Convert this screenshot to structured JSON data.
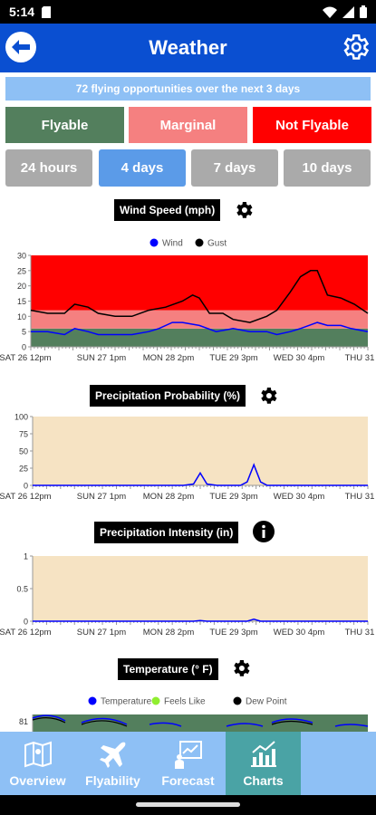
{
  "status": {
    "time": "5:14"
  },
  "appbar": {
    "title": "Weather"
  },
  "banner": "72 flying opportunities over the next 3 days",
  "legend": [
    {
      "label": "Flyable",
      "color": "#537f5d"
    },
    {
      "label": "Marginal",
      "color": "#f58080"
    },
    {
      "label": "Not Flyable",
      "color": "#ff0000"
    }
  ],
  "ranges": [
    {
      "label": "24 hours",
      "active": false
    },
    {
      "label": "4 days",
      "active": true
    },
    {
      "label": "7 days",
      "active": false
    },
    {
      "label": "10 days",
      "active": false
    }
  ],
  "chart_data": [
    {
      "type": "line",
      "title": "Wind Speed (mph)",
      "ylim": [
        0,
        30
      ],
      "yticks": [
        0,
        5,
        10,
        15,
        20,
        25,
        30
      ],
      "xticks": [
        "SAT 26 12pm",
        "SUN 27 1pm",
        "MON 28 2pm",
        "TUE 29 3pm",
        "WED 30 4pm",
        "THU 31"
      ],
      "bands": [
        {
          "from": 0,
          "to": 6,
          "color": "#537f5d"
        },
        {
          "from": 6,
          "to": 12,
          "color": "#f58080"
        },
        {
          "from": 12,
          "to": 30,
          "color": "#ff0000"
        }
      ],
      "legend_position": "top",
      "series": [
        {
          "name": "Wind",
          "color": "#0000ff",
          "x": [
            0,
            0.05,
            0.1,
            0.13,
            0.17,
            0.2,
            0.25,
            0.3,
            0.35,
            0.38,
            0.42,
            0.45,
            0.5,
            0.55,
            0.6,
            0.65,
            0.7,
            0.73,
            0.77,
            0.8,
            0.85,
            0.88,
            0.92,
            0.95,
            1
          ],
          "y": [
            5,
            5,
            4,
            6,
            5,
            4,
            4,
            4,
            5,
            6,
            8,
            8,
            7,
            5,
            6,
            5,
            5,
            4,
            5,
            6,
            8,
            7,
            7,
            6,
            5
          ]
        },
        {
          "name": "Gust",
          "color": "#000000",
          "x": [
            0,
            0.05,
            0.1,
            0.13,
            0.17,
            0.2,
            0.25,
            0.3,
            0.35,
            0.4,
            0.45,
            0.48,
            0.5,
            0.53,
            0.57,
            0.6,
            0.65,
            0.7,
            0.73,
            0.77,
            0.8,
            0.83,
            0.85,
            0.88,
            0.92,
            0.96,
            1
          ],
          "y": [
            12,
            11,
            11,
            14,
            13,
            11,
            10,
            10,
            12,
            13,
            15,
            17,
            16,
            11,
            11,
            9,
            8,
            10,
            12,
            18,
            23,
            25,
            25,
            17,
            16,
            14,
            11
          ]
        }
      ]
    },
    {
      "type": "line",
      "title": "Precipitation Probability (%)",
      "ylim": [
        0,
        100
      ],
      "yticks": [
        0,
        25,
        50,
        75,
        100
      ],
      "xticks": [
        "SAT 26 12pm",
        "SUN 27 1pm",
        "MON 28 2pm",
        "TUE 29 3pm",
        "WED 30 4pm",
        "THU 31"
      ],
      "background": "#f6e3c3",
      "series": [
        {
          "name": "",
          "color": "#0000ff",
          "x": [
            0,
            0.45,
            0.48,
            0.5,
            0.52,
            0.55,
            0.62,
            0.64,
            0.66,
            0.68,
            0.7,
            1
          ],
          "y": [
            0,
            0,
            2,
            18,
            2,
            0,
            0,
            5,
            30,
            5,
            0,
            0
          ]
        }
      ]
    },
    {
      "type": "line",
      "title": "Precipitation Intensity (in)",
      "ylim": [
        0,
        1
      ],
      "yticks": [
        0,
        0.5,
        1
      ],
      "xticks": [
        "SAT 26 12pm",
        "SUN 27 1pm",
        "MON 28 2pm",
        "TUE 29 3pm",
        "WED 30 4pm",
        "THU 31"
      ],
      "background": "#f6e3c3",
      "series": [
        {
          "name": "",
          "color": "#0000ff",
          "x": [
            0,
            0.48,
            0.5,
            0.52,
            0.64,
            0.66,
            0.68,
            1
          ],
          "y": [
            0,
            0,
            0.01,
            0,
            0,
            0.03,
            0,
            0
          ]
        }
      ]
    },
    {
      "type": "line",
      "title": "Temperature (° F)",
      "yticks": [
        81
      ],
      "legend_position": "top",
      "series": [
        {
          "name": "Temperature",
          "color": "#0000ff"
        },
        {
          "name": "Feels Like",
          "color": "#90ee30"
        },
        {
          "name": "Dew Point",
          "color": "#000000"
        }
      ]
    }
  ],
  "nav": [
    {
      "label": "Overview",
      "icon": "map-icon",
      "active": false
    },
    {
      "label": "Flyability",
      "icon": "plane-icon",
      "active": false
    },
    {
      "label": "Forecast",
      "icon": "forecast-icon",
      "active": false
    },
    {
      "label": "Charts",
      "icon": "chart-icon",
      "active": true
    }
  ]
}
